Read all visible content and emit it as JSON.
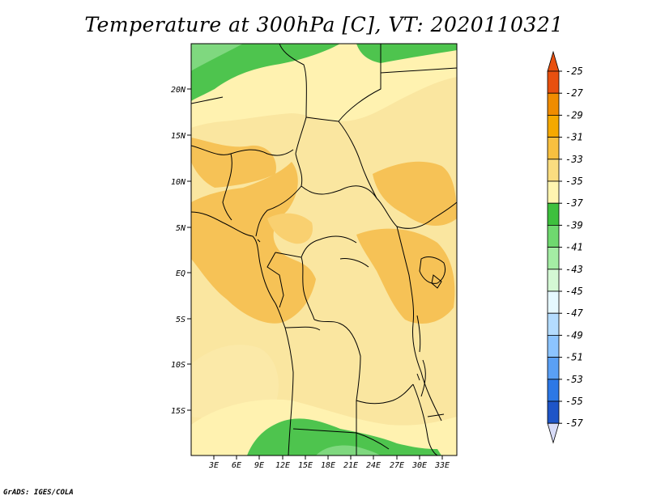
{
  "title": "Temperature at 300hPa [C], VT: 2020110321",
  "credit": "GrADS: IGES/COLA",
  "map": {
    "lon_labels": [
      "3E",
      "6E",
      "9E",
      "12E",
      "15E",
      "18E",
      "21E",
      "24E",
      "27E",
      "30E",
      "33E"
    ],
    "lat_labels": [
      "20N",
      "15N",
      "10N",
      "5N",
      "EQ",
      "5S",
      "10S",
      "15S"
    ]
  },
  "colorbar": {
    "labels": [
      "-25",
      "-27",
      "-29",
      "-31",
      "-33",
      "-35",
      "-37",
      "-39",
      "-41",
      "-43",
      "-45",
      "-47",
      "-49",
      "-51",
      "-53",
      "-55",
      "-57"
    ],
    "colors": [
      "#e8500f",
      "#f08c00",
      "#f5a900",
      "#f8c040",
      "#fadd80",
      "#fff5b0",
      "#3ec03e",
      "#6fd86f",
      "#a4eca4",
      "#d4f8d4",
      "#e6f8ff",
      "#b4dcff",
      "#8cc4ff",
      "#5aa0f5",
      "#2c78e6",
      "#1e55c8",
      "#142d9b",
      "#0a1464"
    ],
    "tip_top_color": "#e8500f",
    "tip_bottom_color": "#d8dcf8"
  }
}
